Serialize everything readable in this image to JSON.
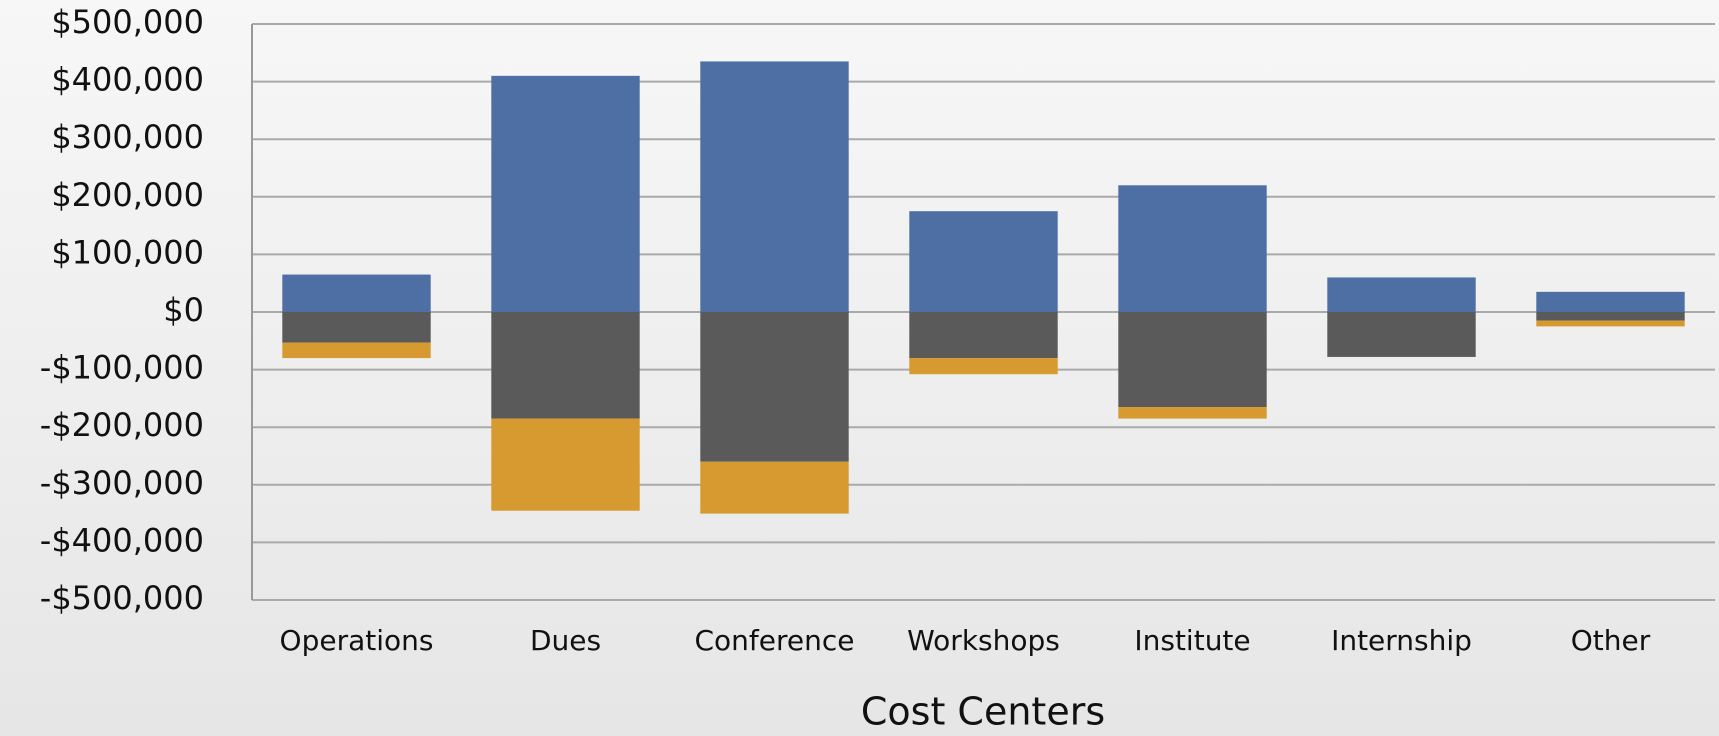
{
  "chart_data": {
    "type": "bar",
    "stacked": true,
    "x_label": "Cost Centers",
    "categories": [
      "Operations",
      "Dues",
      "Conference",
      "Workshops",
      "Institute",
      "Internship",
      "Other"
    ],
    "series": [
      {
        "color": "#4e6fa3",
        "values": [
          65000,
          410000,
          435000,
          175000,
          220000,
          60000,
          35000
        ]
      },
      {
        "color": "#5a5a5a",
        "values": [
          -53000,
          -185000,
          -260000,
          -80000,
          -165000,
          -78000,
          -15000
        ]
      },
      {
        "color": "#d69a30",
        "values": [
          -27000,
          -160000,
          -90000,
          -28000,
          -20000,
          0,
          -10000
        ]
      }
    ],
    "ylim": [
      -500000,
      500000
    ],
    "yticks": [
      {
        "value": -500000,
        "label": "-$500,000"
      },
      {
        "value": -400000,
        "label": "-$400,000"
      },
      {
        "value": -300000,
        "label": "-$300,000"
      },
      {
        "value": -200000,
        "label": "-$200,000"
      },
      {
        "value": -100000,
        "label": "-$100,000"
      },
      {
        "value": 0,
        "label": "$0"
      },
      {
        "value": 100000,
        "label": "$100,000"
      },
      {
        "value": 200000,
        "label": "$200,000"
      },
      {
        "value": 300000,
        "label": "$300,000"
      },
      {
        "value": 400000,
        "label": "$400,000"
      },
      {
        "value": 500000,
        "label": "$500,000"
      }
    ],
    "grid": true
  }
}
